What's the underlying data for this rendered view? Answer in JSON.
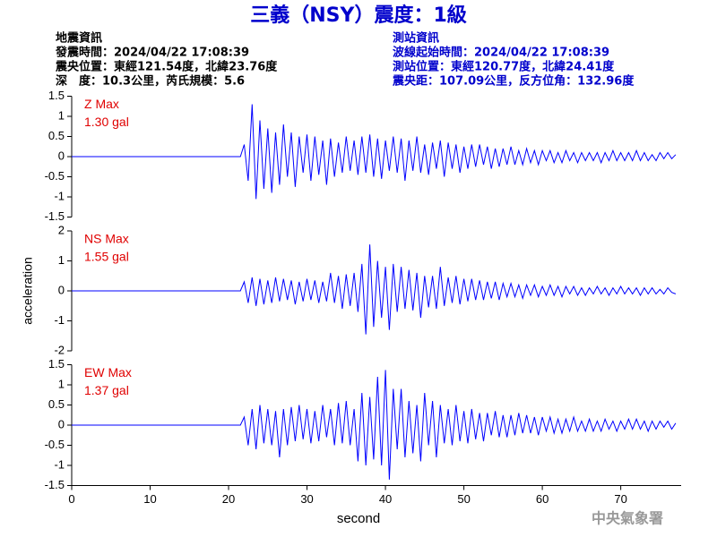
{
  "header": {
    "title": "三義（NSY）震度：1級",
    "left": [
      "地震資訊",
      "發震時間：2024/04/22 17:08:39",
      "震央位置：東經121.54度，北緯23.76度",
      "深　度：10.3公里，芮氏規模：5.6"
    ],
    "right": [
      "測站資訊",
      "波線起始時間：2024/04/22 17:08:39",
      "測站位置：東經120.77度，北緯24.41度",
      "震央距：107.09公里，反方位角：132.96度"
    ]
  },
  "footer": "中央氣象署",
  "chart_data": [
    {
      "type": "line",
      "annotations": [
        "Z Max",
        "1.30 gal"
      ],
      "annotation_color": "#e00000",
      "color": "#0000ff",
      "xlim": [
        0,
        77.7
      ],
      "ylim": [
        -1.5,
        1.5
      ],
      "yticks": [
        -1.5,
        -1,
        -0.5,
        0,
        0.5,
        1,
        1.5
      ],
      "x": [
        0,
        21.5,
        22,
        22.5,
        23,
        23.5,
        24,
        24.5,
        25,
        25.5,
        26,
        26.5,
        27,
        27.5,
        28,
        28.5,
        29,
        29.5,
        30,
        30.5,
        31,
        31.5,
        32,
        32.5,
        33,
        33.5,
        34,
        34.5,
        35,
        35.5,
        36,
        36.5,
        37,
        37.5,
        38,
        38.5,
        39,
        39.5,
        40,
        40.5,
        41,
        41.5,
        42,
        42.5,
        43,
        43.5,
        44,
        44.5,
        45,
        45.5,
        46,
        46.5,
        47,
        47.5,
        48,
        48.5,
        49,
        49.5,
        50,
        50.5,
        51,
        51.5,
        52,
        52.5,
        53,
        53.5,
        54,
        54.5,
        55,
        55.5,
        56,
        56.5,
        57,
        57.5,
        58,
        58.5,
        59,
        59.5,
        60,
        60.5,
        61,
        61.5,
        62,
        62.5,
        63,
        63.5,
        64,
        64.5,
        65,
        65.5,
        66,
        66.5,
        67,
        67.5,
        68,
        68.5,
        69,
        69.5,
        70,
        70.5,
        71,
        71.5,
        72,
        72.5,
        73,
        73.5,
        74,
        74.5,
        75,
        75.5,
        76,
        76.5,
        77
      ],
      "values": [
        0,
        0,
        0.3,
        -0.6,
        1.3,
        -1.05,
        0.9,
        -0.8,
        0.7,
        -0.9,
        0.6,
        -0.7,
        0.8,
        -0.5,
        0.6,
        -0.75,
        0.5,
        -0.4,
        0.55,
        -0.6,
        0.5,
        -0.45,
        0.4,
        -0.7,
        0.45,
        -0.5,
        0.35,
        -0.4,
        0.5,
        -0.35,
        0.4,
        -0.45,
        0.5,
        -0.4,
        0.55,
        -0.5,
        0.45,
        -0.55,
        0.4,
        -0.35,
        0.5,
        -0.4,
        0.45,
        -0.6,
        0.4,
        -0.35,
        0.5,
        -0.4,
        0.3,
        -0.45,
        0.35,
        -0.3,
        0.4,
        -0.5,
        0.35,
        -0.3,
        0.3,
        -0.4,
        0.25,
        -0.3,
        0.3,
        -0.25,
        0.3,
        -0.2,
        0.25,
        -0.3,
        0.2,
        -0.25,
        0.2,
        -0.2,
        0.25,
        -0.2,
        0.15,
        -0.2,
        0.2,
        -0.15,
        0.15,
        -0.2,
        0.15,
        -0.1,
        0.15,
        -0.15,
        0.1,
        -0.15,
        0.15,
        -0.1,
        0.1,
        -0.15,
        0.1,
        -0.1,
        0.1,
        -0.1,
        0.1,
        -0.15,
        0.1,
        -0.1,
        0.15,
        -0.1,
        0.1,
        -0.1,
        0.1,
        -0.1,
        0.15,
        -0.1,
        0.1,
        -0.1,
        0.05,
        -0.1,
        0.1,
        -0.05,
        0.1,
        -0.05,
        0.05
      ]
    },
    {
      "type": "line",
      "annotations": [
        "NS Max",
        "1.55 gal"
      ],
      "annotation_color": "#e00000",
      "color": "#0000ff",
      "ylabel": "acceleration",
      "xlim": [
        0,
        77.7
      ],
      "ylim": [
        -2,
        2
      ],
      "yticks": [
        -2,
        -1,
        0,
        1,
        2
      ],
      "x": [
        0,
        21.5,
        22,
        22.5,
        23,
        23.5,
        24,
        24.5,
        25,
        25.5,
        26,
        26.5,
        27,
        27.5,
        28,
        28.5,
        29,
        29.5,
        30,
        30.5,
        31,
        31.5,
        32,
        32.5,
        33,
        33.5,
        34,
        34.5,
        35,
        35.5,
        36,
        36.5,
        37,
        37.5,
        38,
        38.5,
        39,
        39.5,
        40,
        40.5,
        41,
        41.5,
        42,
        42.5,
        43,
        43.5,
        44,
        44.5,
        45,
        45.5,
        46,
        46.5,
        47,
        47.5,
        48,
        48.5,
        49,
        49.5,
        50,
        50.5,
        51,
        51.5,
        52,
        52.5,
        53,
        53.5,
        54,
        54.5,
        55,
        55.5,
        56,
        56.5,
        57,
        57.5,
        58,
        58.5,
        59,
        59.5,
        60,
        60.5,
        61,
        61.5,
        62,
        62.5,
        63,
        63.5,
        64,
        64.5,
        65,
        65.5,
        66,
        66.5,
        67,
        67.5,
        68,
        68.5,
        69,
        69.5,
        70,
        70.5,
        71,
        71.5,
        72,
        72.5,
        73,
        73.5,
        74,
        74.5,
        75,
        75.5,
        76,
        76.5,
        77
      ],
      "values": [
        0,
        0,
        0.3,
        -0.4,
        0.45,
        -0.5,
        0.4,
        -0.45,
        0.35,
        -0.4,
        0.45,
        -0.35,
        0.4,
        -0.3,
        0.35,
        -0.45,
        0.3,
        -0.35,
        0.4,
        -0.3,
        0.35,
        -0.4,
        0.3,
        -0.35,
        0.6,
        -0.4,
        0.5,
        -0.6,
        0.55,
        -0.5,
        0.6,
        -0.7,
        0.9,
        -1.45,
        1.55,
        -1.2,
        1.0,
        -0.9,
        0.8,
        -1.3,
        0.9,
        -0.7,
        0.8,
        -0.6,
        0.7,
        -0.65,
        0.6,
        -0.9,
        0.5,
        -0.55,
        0.5,
        -0.6,
        0.8,
        -0.5,
        0.45,
        -0.4,
        0.5,
        -0.45,
        0.4,
        -0.35,
        0.4,
        -0.3,
        0.35,
        -0.3,
        0.3,
        -0.25,
        0.3,
        -0.3,
        0.25,
        -0.2,
        0.25,
        -0.2,
        0.2,
        -0.25,
        0.2,
        -0.15,
        0.2,
        -0.2,
        0.15,
        -0.15,
        0.2,
        -0.15,
        0.15,
        -0.2,
        0.15,
        -0.1,
        0.15,
        -0.15,
        0.1,
        -0.15,
        0.1,
        -0.1,
        0.15,
        -0.1,
        0.1,
        -0.15,
        0.1,
        -0.1,
        0.15,
        -0.1,
        0.1,
        -0.1,
        0.1,
        -0.15,
        0.1,
        -0.1,
        0.1,
        -0.1,
        0.05,
        -0.1,
        0.1,
        -0.05,
        -0.1
      ]
    },
    {
      "type": "line",
      "annotations": [
        "EW Max",
        "1.37 gal"
      ],
      "annotation_color": "#e00000",
      "color": "#0000ff",
      "xlabel": "second",
      "xlim": [
        0,
        77.7
      ],
      "xticks": [
        0,
        10,
        20,
        30,
        40,
        50,
        60,
        70
      ],
      "ylim": [
        -1.5,
        1.5
      ],
      "yticks": [
        -1.5,
        -1,
        -0.5,
        0,
        0.5,
        1,
        1.5
      ],
      "x": [
        0,
        21.5,
        22,
        22.5,
        23,
        23.5,
        24,
        24.5,
        25,
        25.5,
        26,
        26.5,
        27,
        27.5,
        28,
        28.5,
        29,
        29.5,
        30,
        30.5,
        31,
        31.5,
        32,
        32.5,
        33,
        33.5,
        34,
        34.5,
        35,
        35.5,
        36,
        36.5,
        37,
        37.5,
        38,
        38.5,
        39,
        39.5,
        40,
        40.5,
        41,
        41.5,
        42,
        42.5,
        43,
        43.5,
        44,
        44.5,
        45,
        45.5,
        46,
        46.5,
        47,
        47.5,
        48,
        48.5,
        49,
        49.5,
        50,
        50.5,
        51,
        51.5,
        52,
        52.5,
        53,
        53.5,
        54,
        54.5,
        55,
        55.5,
        56,
        56.5,
        57,
        57.5,
        58,
        58.5,
        59,
        59.5,
        60,
        60.5,
        61,
        61.5,
        62,
        62.5,
        63,
        63.5,
        64,
        64.5,
        65,
        65.5,
        66,
        66.5,
        67,
        67.5,
        68,
        68.5,
        69,
        69.5,
        70,
        70.5,
        71,
        71.5,
        72,
        72.5,
        73,
        73.5,
        74,
        74.5,
        75,
        75.5,
        76,
        76.5,
        77
      ],
      "values": [
        0,
        0,
        0.2,
        -0.5,
        0.4,
        -0.6,
        0.5,
        -0.45,
        0.4,
        -0.5,
        0.35,
        -0.8,
        0.4,
        -0.5,
        0.45,
        -0.4,
        0.5,
        -0.35,
        0.4,
        -0.45,
        0.35,
        -0.4,
        0.5,
        -0.3,
        0.4,
        -0.5,
        0.55,
        -0.45,
        0.6,
        -0.5,
        0.4,
        -0.9,
        0.8,
        -1.0,
        0.7,
        -0.85,
        1.2,
        -1.0,
        1.37,
        -1.35,
        0.9,
        -0.6,
        0.9,
        -0.8,
        0.6,
        -0.7,
        0.5,
        -0.9,
        0.8,
        -0.5,
        0.6,
        -0.8,
        0.5,
        -0.45,
        0.4,
        -0.5,
        0.5,
        -0.4,
        0.35,
        -0.45,
        0.4,
        -0.35,
        0.3,
        -0.4,
        0.3,
        -0.25,
        0.35,
        -0.3,
        0.25,
        -0.3,
        0.25,
        -0.25,
        0.3,
        -0.2,
        0.25,
        -0.2,
        0.2,
        -0.25,
        0.2,
        -0.15,
        0.2,
        -0.2,
        0.15,
        -0.2,
        0.15,
        -0.15,
        0.2,
        -0.15,
        0.1,
        -0.15,
        0.15,
        -0.15,
        0.1,
        -0.15,
        0.15,
        -0.1,
        0.1,
        -0.15,
        0.1,
        -0.1,
        0.15,
        -0.1,
        0.15,
        -0.1,
        0.1,
        -0.15,
        0.1,
        -0.1,
        0.1,
        -0.05,
        0.1,
        -0.1,
        0.05
      ]
    }
  ]
}
